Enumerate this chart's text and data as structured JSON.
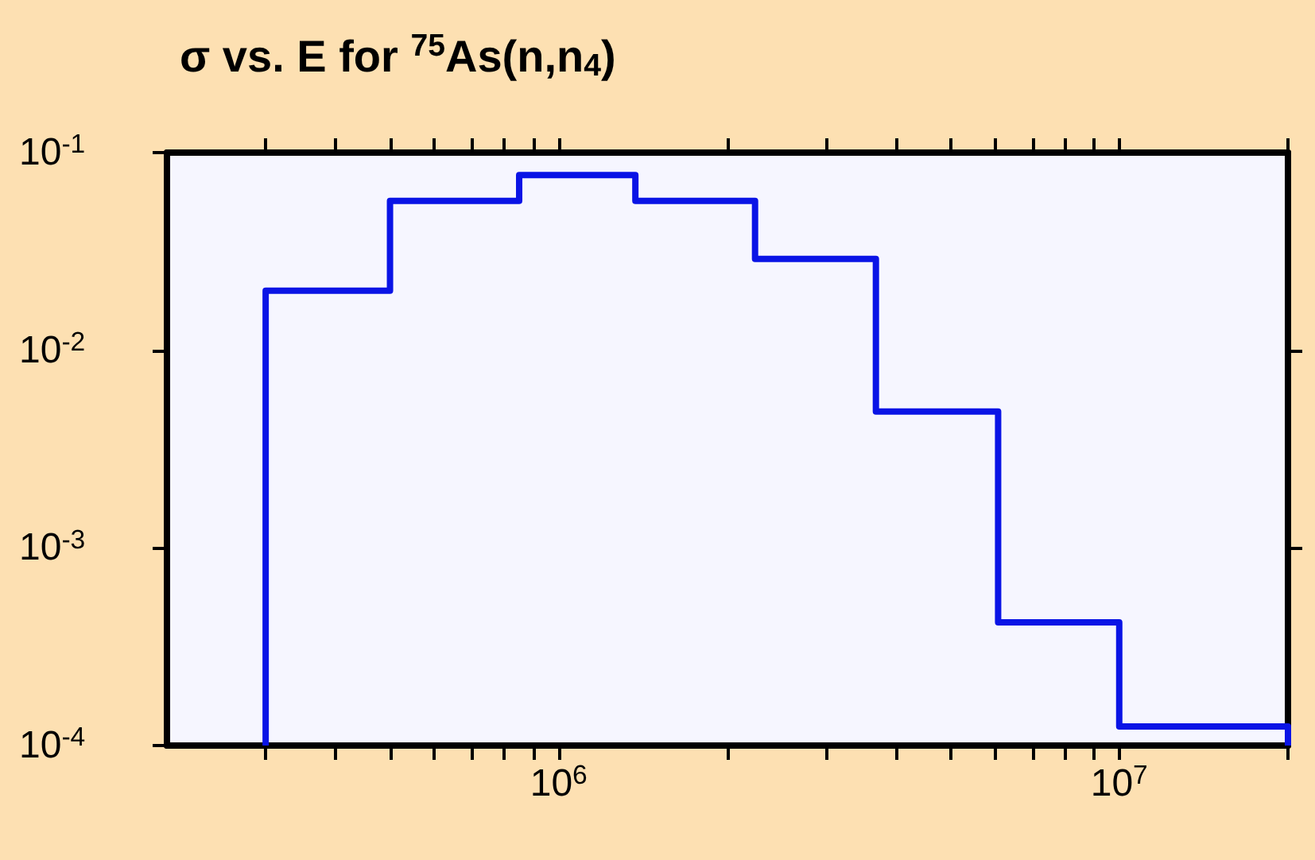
{
  "chart_data": {
    "type": "histogram",
    "title": "σ vs. E for $^{75}$As(n,n$_{4}$)",
    "bins": [
      300000,
      500000,
      850000,
      1370000,
      2240000,
      3680000,
      6080000,
      10000000,
      20000000
    ],
    "values": [
      0.02,
      0.057,
      0.077,
      0.057,
      0.029,
      0.0049,
      0.00042,
      0.000125
    ],
    "color": "#0a14e6",
    "log": "xy",
    "grid": false,
    "xlim": [
      200000,
      20000000
    ],
    "ylim": [
      0.0001,
      0.1
    ],
    "xticks": [
      {
        "value": 300000,
        "label": null
      },
      {
        "value": 400000,
        "label": null
      },
      {
        "value": 500000,
        "label": null
      },
      {
        "value": 600000,
        "label": null
      },
      {
        "value": 700000,
        "label": null
      },
      {
        "value": 800000,
        "label": null
      },
      {
        "value": 900000,
        "label": null
      },
      {
        "value": 1000000,
        "label": "10$^{6}$"
      },
      {
        "value": 2000000,
        "label": null
      },
      {
        "value": 3000000,
        "label": null
      },
      {
        "value": 4000000,
        "label": null
      },
      {
        "value": 5000000,
        "label": null
      },
      {
        "value": 6000000,
        "label": null
      },
      {
        "value": 7000000,
        "label": null
      },
      {
        "value": 8000000,
        "label": null
      },
      {
        "value": 9000000,
        "label": null
      },
      {
        "value": 10000000,
        "label": "10$^{7}$"
      },
      {
        "value": 20000000,
        "label": null
      }
    ],
    "yticks": [
      {
        "value": 0.0001,
        "label": "10$^{-4}$"
      },
      {
        "value": 0.001,
        "label": "10$^{-3}$"
      },
      {
        "value": 0.01,
        "label": "10$^{-2}$"
      },
      {
        "value": 0.1,
        "label": "10$^{-1}$"
      }
    ]
  }
}
